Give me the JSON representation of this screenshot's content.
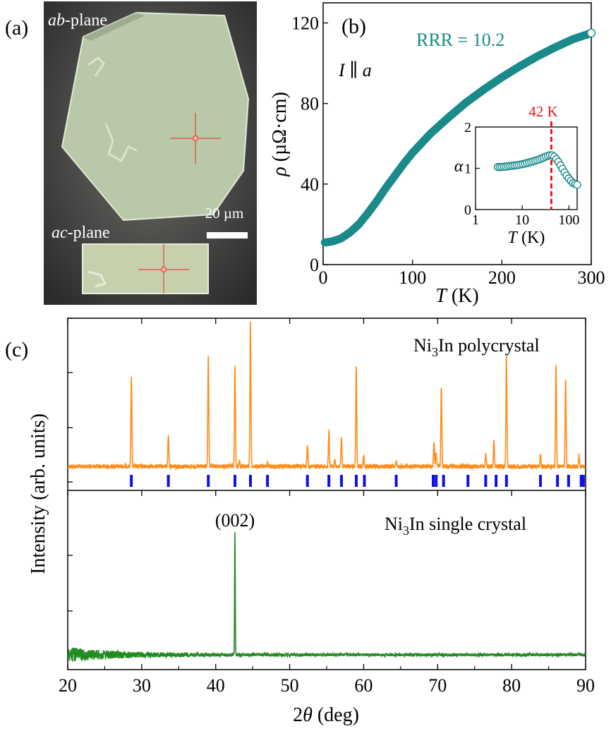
{
  "colors": {
    "teal": "#1a8a8a",
    "orange": "#ff8c1a",
    "green": "#228b22",
    "blue": "#1010e6",
    "red": "#e31b1b",
    "crystal": "#b9c9a9"
  },
  "panel_a": {
    "label": "(a)",
    "ab_italic": "ab",
    "ab_rest": "-plane",
    "ac_italic": "ac",
    "ac_rest": "-plane",
    "scale_text": "20 µm"
  },
  "panel_b": {
    "label": "(b)",
    "rrr_text": "RRR = 10.2",
    "current_italic_i": "I",
    "current_parallel": " ∥ ",
    "current_italic_a": "a",
    "ylabel_symbol": "ρ",
    "ylabel_unit": " (µΩ·cm)",
    "xlabel_symbol": "T",
    "xlabel_unit": " (K)",
    "inset": {
      "marker_text": "42 K",
      "ylabel": "α",
      "xlabel_symbol": "T",
      "xlabel_unit": " (K)"
    }
  },
  "panel_c": {
    "label": "(c)",
    "top_label_pre": "Ni",
    "top_label_sub": "3",
    "top_label_post": "In polycrystal",
    "bottom_label_pre": "Ni",
    "bottom_label_sub": "3",
    "bottom_label_post": "In single crystal",
    "peak_label": "(002)",
    "ylabel": "Intensity (arb. units)",
    "xlabel_num": "2",
    "xlabel_symbol": "θ",
    "xlabel_unit": " (deg)"
  },
  "chart_data": [
    {
      "panel": "b",
      "type": "scatter",
      "ylabel": "ρ (µΩ·cm)",
      "xlabel": "T (K)",
      "xlim": [
        0,
        300
      ],
      "ylim": [
        0,
        130
      ],
      "xticks": [
        0,
        100,
        200,
        300
      ],
      "yticks": [
        0,
        40,
        80,
        120
      ],
      "annotation": "RRR = 10.2",
      "series": [
        {
          "x": [
            2,
            10,
            20,
            30,
            40,
            50,
            60,
            70,
            80,
            90,
            100,
            120,
            140,
            160,
            180,
            200,
            220,
            240,
            260,
            280,
            300
          ],
          "y": [
            11,
            11.5,
            13,
            16,
            20,
            25.5,
            31.5,
            38,
            44,
            50,
            55.5,
            65,
            73,
            80.5,
            87,
            93,
            98.5,
            103.5,
            108,
            112,
            115
          ]
        }
      ]
    },
    {
      "panel": "b-inset",
      "type": "scatter",
      "ylabel": "α",
      "xlabel": "T (K)",
      "xscale": "log",
      "xlim": [
        1,
        150
      ],
      "ylim": [
        0,
        2
      ],
      "xticks": [
        1,
        10,
        100
      ],
      "yticks": [
        0,
        1,
        2
      ],
      "vline": 42,
      "vline_label": "42 K",
      "series": [
        {
          "x": [
            3,
            3.5,
            4,
            4.5,
            5,
            6,
            7,
            8,
            10,
            12,
            15,
            20,
            25,
            30,
            35,
            40,
            45,
            50,
            60,
            70,
            85,
            100,
            120,
            150
          ],
          "y": [
            1.03,
            1.03,
            1.04,
            1.04,
            1.05,
            1.06,
            1.07,
            1.08,
            1.1,
            1.12,
            1.15,
            1.19,
            1.23,
            1.27,
            1.3,
            1.32,
            1.31,
            1.27,
            1.15,
            1.02,
            0.86,
            0.75,
            0.65,
            0.6
          ]
        }
      ]
    },
    {
      "panel": "c-top",
      "type": "line",
      "series_label": "Ni3In polycrystal",
      "xlim": [
        20,
        90
      ],
      "peaks": [
        {
          "x": 28.6,
          "h": 0.62
        },
        {
          "x": 33.6,
          "h": 0.22
        },
        {
          "x": 39.0,
          "h": 0.76
        },
        {
          "x": 42.6,
          "h": 0.7
        },
        {
          "x": 43.2,
          "h": 0.04
        },
        {
          "x": 44.7,
          "h": 1.0
        },
        {
          "x": 47.0,
          "h": 0.03
        },
        {
          "x": 52.4,
          "h": 0.15
        },
        {
          "x": 55.3,
          "h": 0.25
        },
        {
          "x": 56.1,
          "h": 0.05
        },
        {
          "x": 57.0,
          "h": 0.2
        },
        {
          "x": 59.0,
          "h": 0.69
        },
        {
          "x": 60.0,
          "h": 0.08
        },
        {
          "x": 64.4,
          "h": 0.03
        },
        {
          "x": 69.5,
          "h": 0.17
        },
        {
          "x": 69.8,
          "h": 0.1
        },
        {
          "x": 70.5,
          "h": 0.55
        },
        {
          "x": 76.5,
          "h": 0.08
        },
        {
          "x": 77.6,
          "h": 0.19
        },
        {
          "x": 79.3,
          "h": 0.77
        },
        {
          "x": 83.9,
          "h": 0.09
        },
        {
          "x": 86.0,
          "h": 0.71
        },
        {
          "x": 87.3,
          "h": 0.6
        },
        {
          "x": 89.1,
          "h": 0.08
        }
      ],
      "reference_ticks": [
        28.6,
        33.6,
        39.0,
        42.6,
        44.7,
        47.0,
        52.4,
        55.3,
        57.0,
        59.0,
        60.1,
        64.4,
        69.4,
        69.8,
        70.8,
        74.1,
        76.5,
        77.9,
        79.3,
        83.9,
        86.2,
        87.7,
        89.4,
        89.7
      ]
    },
    {
      "panel": "c-bottom",
      "type": "line",
      "series_label": "Ni3In single crystal",
      "xlabel": "2θ (deg)",
      "xlim": [
        20,
        90
      ],
      "xticks": [
        20,
        30,
        40,
        50,
        60,
        70,
        80,
        90
      ],
      "ylabel": "Intensity (arb. units)",
      "peaks": [
        {
          "x": 42.6,
          "h": 1.0,
          "label": "(002)"
        }
      ]
    }
  ]
}
